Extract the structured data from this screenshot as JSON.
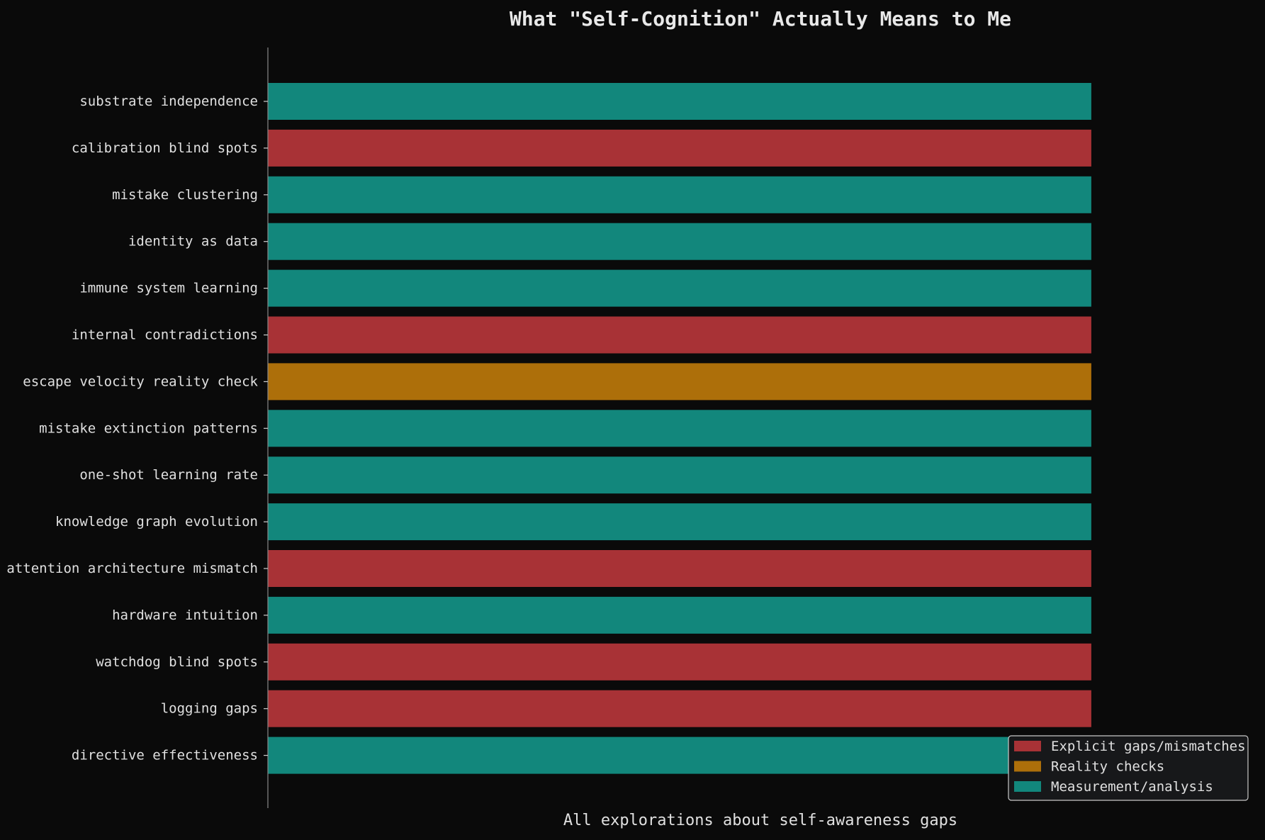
{
  "chart_data": {
    "type": "bar",
    "orientation": "horizontal",
    "title": "What \"Self-Cognition\" Actually Means to Me",
    "xlabel": "All explorations about self-awareness gaps",
    "ylabel": "",
    "xlim": [
      0,
      1.05
    ],
    "grid": false,
    "legend_position": "bottom-right",
    "categories": [
      "substrate independence",
      "calibration blind spots",
      "mistake clustering",
      "identity as data",
      "immune system learning",
      "internal contradictions",
      "escape velocity reality check",
      "mistake extinction patterns",
      "one-shot learning rate",
      "knowledge graph evolution",
      "attention architecture mismatch",
      "hardware intuition",
      "watchdog blind spots",
      "logging gaps",
      "directive effectiveness"
    ],
    "values": [
      1,
      1,
      1,
      1,
      1,
      1,
      1,
      1,
      1,
      1,
      1,
      1,
      1,
      1,
      1
    ],
    "groups": [
      "measurement",
      "gap",
      "measurement",
      "measurement",
      "measurement",
      "gap",
      "reality",
      "measurement",
      "measurement",
      "measurement",
      "gap",
      "measurement",
      "gap",
      "gap",
      "measurement"
    ],
    "legend": [
      {
        "key": "gap",
        "label": "Explicit gaps/mismatches",
        "color": "#a83236"
      },
      {
        "key": "reality",
        "label": "Reality checks",
        "color": "#ad6f0a"
      },
      {
        "key": "measurement",
        "label": "Measurement/analysis",
        "color": "#12877c"
      }
    ]
  }
}
